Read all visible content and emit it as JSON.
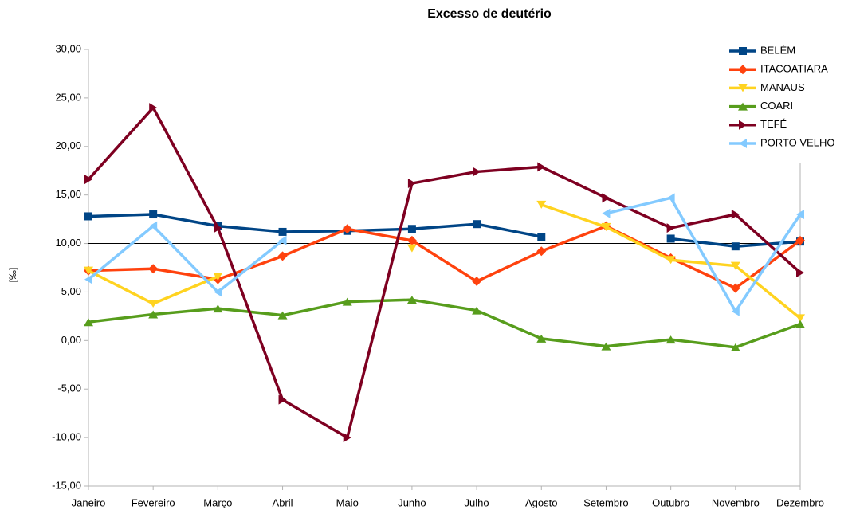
{
  "chart_data": {
    "type": "line",
    "title": "Excesso de deutério",
    "y_label": "[‰]",
    "categories": [
      "Janeiro",
      "Fevereiro",
      "Março",
      "Abril",
      "Maio",
      "Junho",
      "Julho",
      "Agosto",
      "Setembro",
      "Outubro",
      "Novembro",
      "Dezembro"
    ],
    "ylim": [
      -15,
      30
    ],
    "yticks": [
      {
        "value": -15,
        "label": "-15,00"
      },
      {
        "value": -10,
        "label": "-10,00"
      },
      {
        "value": -5,
        "label": "-5,00"
      },
      {
        "value": 0,
        "label": "0,00"
      },
      {
        "value": 5,
        "label": "5,00"
      },
      {
        "value": 10,
        "label": "10,00"
      },
      {
        "value": 15,
        "label": "15,00"
      },
      {
        "value": 20,
        "label": "20,00"
      },
      {
        "value": 25,
        "label": "25,00"
      },
      {
        "value": 30,
        "label": "30,00"
      }
    ],
    "reference_line": 10,
    "legend": "top-right",
    "series": [
      {
        "name": "BELÉM",
        "color": "#004586",
        "marker": "square",
        "values": [
          12.8,
          13.0,
          11.8,
          11.2,
          11.3,
          11.5,
          12.0,
          10.7,
          null,
          10.5,
          9.7,
          10.2
        ]
      },
      {
        "name": "ITACOATIARA",
        "color": "#ff420e",
        "marker": "diamond",
        "values": [
          7.2,
          7.4,
          6.3,
          8.7,
          11.5,
          10.3,
          6.1,
          9.2,
          11.8,
          8.5,
          5.4,
          10.3
        ]
      },
      {
        "name": "MANAUS",
        "color": "#ffd320",
        "marker": "triangle-down",
        "values": [
          7.2,
          3.8,
          6.6,
          null,
          null,
          9.5,
          null,
          14.0,
          11.7,
          8.3,
          7.7,
          2.3
        ]
      },
      {
        "name": "COARI",
        "color": "#579d1c",
        "marker": "triangle-up",
        "values": [
          1.9,
          2.7,
          3.3,
          2.6,
          4.0,
          4.2,
          3.1,
          0.2,
          -0.6,
          0.1,
          -0.7,
          1.7
        ]
      },
      {
        "name": "TEFÉ",
        "color": "#7e0021",
        "marker": "triangle-right",
        "values": [
          16.6,
          24.0,
          11.6,
          -6.1,
          -10.0,
          16.2,
          17.4,
          17.9,
          14.7,
          11.6,
          13.0,
          7.0
        ]
      },
      {
        "name": "PORTO VELHO",
        "color": "#83caff",
        "marker": "triangle-left",
        "values": [
          6.3,
          11.8,
          5.0,
          10.3,
          null,
          null,
          null,
          null,
          13.1,
          14.7,
          3.0,
          13.0
        ]
      }
    ]
  }
}
